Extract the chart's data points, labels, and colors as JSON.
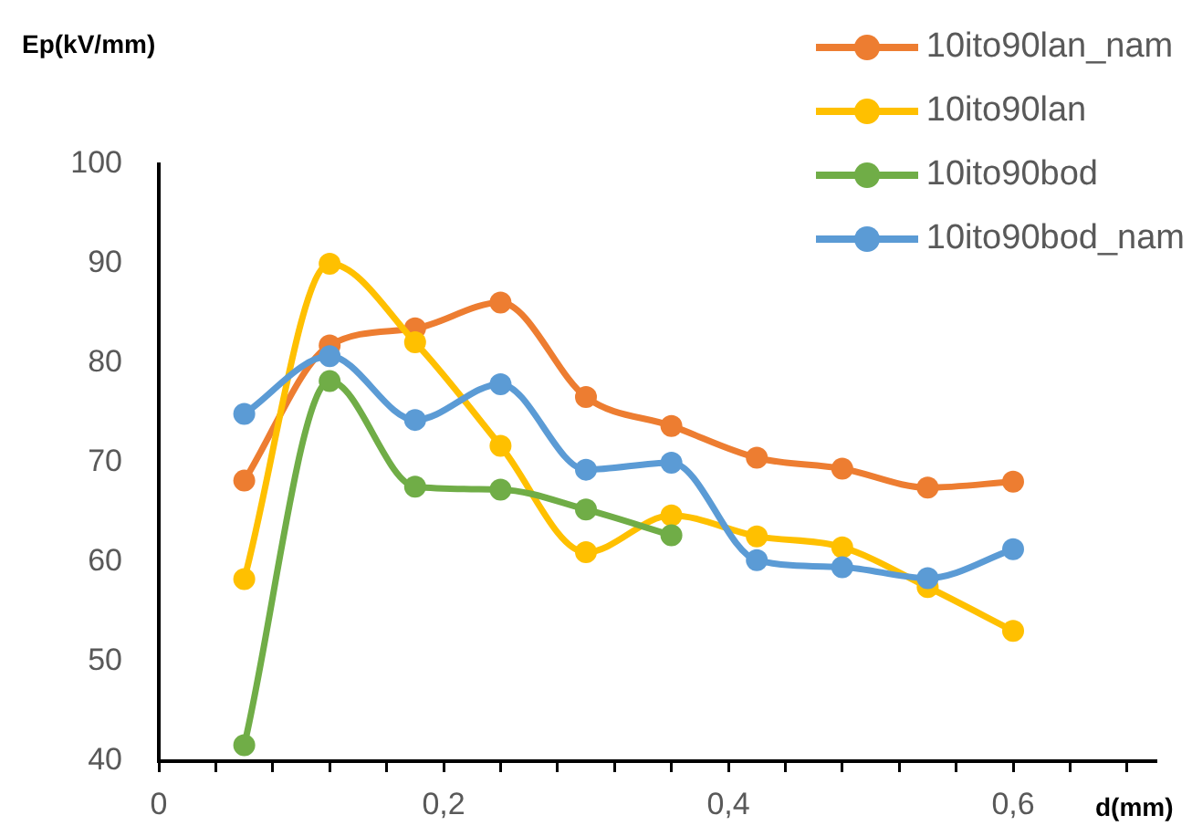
{
  "chart_data": {
    "type": "line",
    "xlabel": "d(mm)",
    "ylabel": "Ep(kV/mm)",
    "x": [
      0.06,
      0.12,
      0.18,
      0.24,
      0.3,
      0.36,
      0.42,
      0.48,
      0.54,
      0.6
    ],
    "series": [
      {
        "name": "10ito90lan_nam",
        "color": "#ed7d31",
        "values": [
          68.2,
          81.8,
          83.5,
          86.1,
          76.6,
          73.7,
          70.5,
          69.4,
          67.5,
          68.1
        ]
      },
      {
        "name": "10ito90lan",
        "color": "#ffc000",
        "values": [
          58.3,
          90.0,
          82.1,
          71.7,
          61.0,
          64.7,
          62.6,
          61.5,
          57.5,
          53.1
        ]
      },
      {
        "name": "10ito90bod",
        "color": "#70ad47",
        "values": [
          41.6,
          78.2,
          67.6,
          67.3,
          65.3,
          62.7,
          null,
          null,
          null,
          null
        ]
      },
      {
        "name": "10ito90bod_nam",
        "color": "#5b9bd5",
        "values": [
          74.9,
          80.7,
          74.3,
          77.9,
          69.3,
          70.0,
          60.2,
          59.5,
          58.4,
          61.3
        ]
      }
    ],
    "xlim": [
      0,
      0.7
    ],
    "xticks": [
      {
        "value": 0,
        "label": "0"
      },
      {
        "value": 0.04,
        "label": null
      },
      {
        "value": 0.08,
        "label": null
      },
      {
        "value": 0.12,
        "label": null
      },
      {
        "value": 0.16,
        "label": null
      },
      {
        "value": 0.2,
        "label": "0,2"
      },
      {
        "value": 0.24,
        "label": null
      },
      {
        "value": 0.28,
        "label": null
      },
      {
        "value": 0.32,
        "label": null
      },
      {
        "value": 0.36,
        "label": null
      },
      {
        "value": 0.4,
        "label": "0,4"
      },
      {
        "value": 0.44,
        "label": null
      },
      {
        "value": 0.48,
        "label": null
      },
      {
        "value": 0.52,
        "label": null
      },
      {
        "value": 0.56,
        "label": null
      },
      {
        "value": 0.6,
        "label": "0,6"
      },
      {
        "value": 0.64,
        "label": null
      },
      {
        "value": 0.68,
        "label": null
      }
    ],
    "ylim": [
      40,
      100
    ],
    "yticks": [
      40,
      50,
      60,
      70,
      80,
      90,
      100
    ],
    "legend": "top right",
    "marker": "circle",
    "line_style": "solid"
  }
}
